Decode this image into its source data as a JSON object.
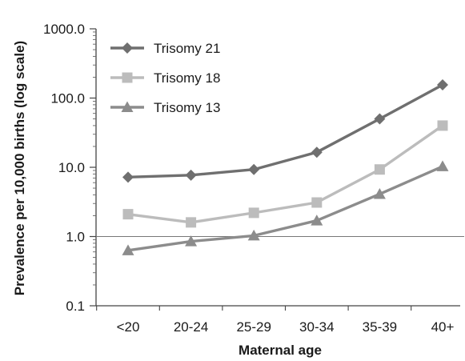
{
  "chart_data": {
    "type": "line",
    "title": "",
    "xlabel": "Maternal age",
    "ylabel": "Prevalence per 10,000 births (log scale)",
    "y_scale": "log",
    "ylim": [
      0.1,
      1000
    ],
    "y_ticks": [
      0.1,
      1.0,
      10.0,
      100.0,
      1000.0
    ],
    "y_tick_labels": [
      "0.1",
      "1.0",
      "10.0",
      "100.0",
      "1000.0"
    ],
    "reference_line": 1.0,
    "grid": false,
    "legend_position": "top-left",
    "categories": [
      "<20",
      "20-24",
      "25-29",
      "30-34",
      "35-39",
      "40+"
    ],
    "series": [
      {
        "name": "Trisomy 21",
        "marker": "diamond",
        "color": "#6f6f6f",
        "values": [
          7.2,
          7.7,
          9.3,
          16.5,
          50,
          155
        ]
      },
      {
        "name": "Trisomy 18",
        "marker": "square",
        "color": "#bcbcbc",
        "values": [
          2.1,
          1.6,
          2.2,
          3.1,
          9.3,
          40
        ]
      },
      {
        "name": "Trisomy 13",
        "marker": "triangle",
        "color": "#8c8c8c",
        "values": [
          0.63,
          0.85,
          1.03,
          1.7,
          4.1,
          10.3
        ]
      }
    ]
  }
}
